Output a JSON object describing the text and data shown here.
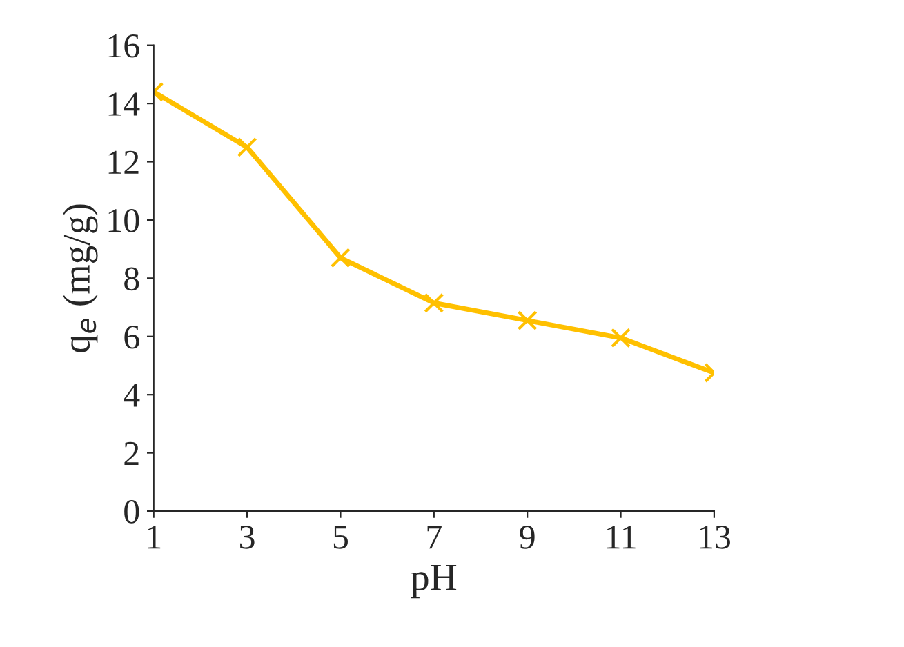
{
  "chart_data": {
    "type": "line",
    "xlabel": "pH",
    "ylabel": "q$_{e}$ (mg/g)",
    "x": [
      1,
      3,
      5,
      7,
      9,
      11,
      13
    ],
    "series": [
      {
        "color": "#ffc000",
        "values": [
          14.4,
          12.5,
          8.7,
          7.15,
          6.55,
          5.95,
          4.75
        ]
      }
    ],
    "xlim": [
      1,
      13
    ],
    "xticks": [
      1,
      3,
      5,
      7,
      9,
      11,
      13
    ],
    "ylim": [
      0,
      16
    ],
    "yticks": [
      0,
      2,
      4,
      6,
      8,
      10,
      12,
      14,
      16
    ],
    "marker": "cross",
    "line_style": "solid",
    "grid": false
  }
}
